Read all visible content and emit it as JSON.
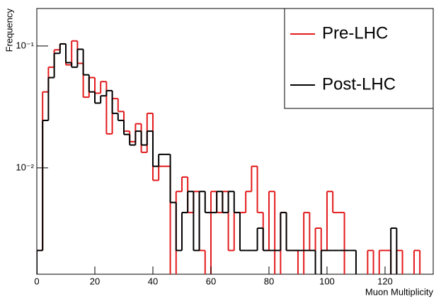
{
  "chart_data": {
    "type": "histogram",
    "xlabel": "Muon Multiplicity",
    "ylabel": "Frequency",
    "log_y": true,
    "bins": [
      0,
      2,
      4,
      6,
      8,
      10,
      12,
      14,
      16,
      18,
      20,
      22,
      24,
      26,
      28,
      30,
      32,
      34,
      36,
      38,
      40,
      42,
      44,
      46,
      48,
      50,
      52,
      54,
      56,
      58,
      60,
      62,
      64,
      66,
      68,
      70,
      72,
      74,
      76,
      78,
      80,
      82,
      84,
      86,
      88,
      90,
      92,
      94,
      96,
      98,
      100,
      102,
      104,
      106,
      108,
      110,
      112,
      114,
      116,
      118,
      120,
      122,
      124,
      126,
      128,
      130,
      132,
      134,
      136
    ],
    "series": [
      {
        "name": "Pre-LHC",
        "color": "#e31a1c",
        "values": [
          0.0021,
          0.042,
          0.067,
          0.093,
          0.104,
          0.07,
          0.11,
          0.072,
          0.038,
          0.055,
          0.041,
          0.051,
          0.019,
          0.037,
          0.029,
          0.02,
          0.0164,
          0.023,
          0.0134,
          0.028,
          0.0079,
          0.0103,
          0.0103,
          0,
          0.0064,
          0.0084,
          0.0043,
          0.0064,
          0.0021,
          0,
          0.0064,
          0.0043,
          0.0064,
          0.0021,
          0.0043,
          0.0043,
          0.0064,
          0.0103,
          0.0043,
          0.0021,
          0.0064,
          0,
          0.0043,
          0.0021,
          0.0021,
          0,
          0.0043,
          0.0021,
          0.0032,
          0.0021,
          0.0064,
          0.0043,
          0.0043,
          0,
          0,
          0,
          0,
          0.0021,
          0,
          0.0021,
          0.0021,
          0,
          0.0021,
          0,
          0,
          0.0021,
          0,
          0
        ]
      },
      {
        "name": "Post-LHC",
        "color": "#000000",
        "values": [
          0.0021,
          0.0245,
          0.055,
          0.087,
          0.104,
          0.073,
          0.067,
          0.094,
          0.058,
          0.042,
          0.034,
          0.039,
          0.043,
          0.028,
          0.0245,
          0.0188,
          0.0154,
          0.02,
          0.0154,
          0.02,
          0.0103,
          0.0129,
          0.0129,
          0.0052,
          0.0021,
          0.0043,
          0.0064,
          0.0021,
          0.0064,
          0.0043,
          0.0043,
          0.0064,
          0.0043,
          0.0064,
          0.0043,
          0.0021,
          0.0021,
          0.0021,
          0.0032,
          0.0021,
          0.0021,
          0.0021,
          0.0043,
          0.0021,
          0.0021,
          0.0021,
          0.0021,
          0.0021,
          0,
          0.0021,
          0.0021,
          0.0021,
          0.0021,
          0.0021,
          0.0021,
          0,
          0,
          0,
          0,
          0,
          0,
          0.0032,
          0,
          0,
          0,
          0,
          0,
          0
        ]
      }
    ],
    "xlim": [
      0,
      136.6
    ],
    "xticks": [
      0,
      20,
      40,
      60,
      80,
      100,
      120
    ],
    "ylim": [
      0.00134,
      0.203
    ],
    "yticks": [
      {
        "value": 0.1,
        "label": "10⁻¹"
      },
      {
        "value": 0.01,
        "label": "10⁻²"
      }
    ],
    "legend": "upper-right"
  }
}
